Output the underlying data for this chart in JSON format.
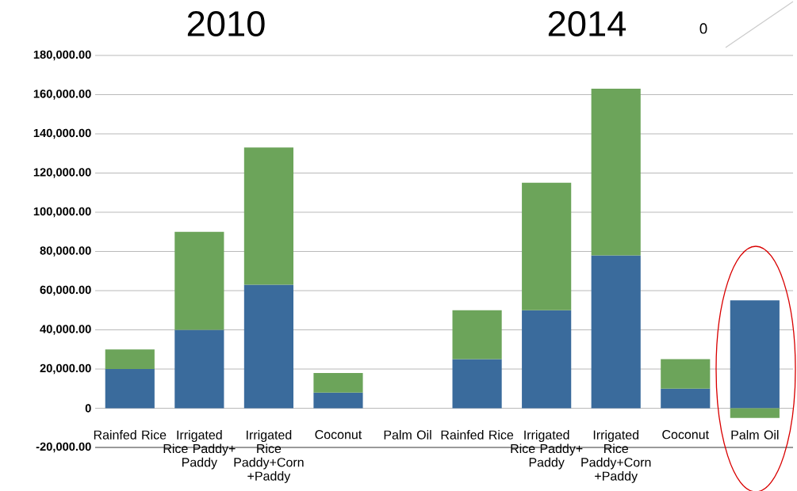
{
  "chart_data": {
    "type": "bar",
    "stacked": true,
    "categories": [
      "Rainfed Rice",
      "Irrigated Rice Paddy+ Paddy",
      "Irrigated Rice Paddy+Corn +Paddy",
      "Coconut",
      "Palm Oil",
      "Rainfed Rice",
      "Irrigated Rice Paddy+ Paddy",
      "Irrigated Rice Paddy+Corn +Paddy",
      "Coconut",
      "Palm Oil"
    ],
    "series": [
      {
        "color": "#3a6b9c",
        "values": [
          20000,
          40000,
          63000,
          8000,
          null,
          25000,
          50000,
          78000,
          10000,
          55000
        ]
      },
      {
        "color": "#6ca45a",
        "values": [
          10000,
          50000,
          70000,
          10000,
          null,
          25000,
          65000,
          85000,
          15000,
          -5000
        ]
      }
    ],
    "ylim": [
      -20000,
      180000
    ],
    "yticks": [
      {
        "value": -20000,
        "label": "-20,000.00"
      },
      0,
      {
        "value": 20000,
        "label": "20,000.00"
      },
      {
        "value": 40000,
        "label": "40,000.00"
      },
      {
        "value": 60000,
        "label": "60,000.00"
      },
      {
        "value": 80000,
        "label": "80,000.00"
      },
      {
        "value": 100000,
        "label": "100,000.00"
      },
      {
        "value": 120000,
        "label": "120,000.00"
      },
      {
        "value": 140000,
        "label": "140,000.00"
      },
      {
        "value": 160000,
        "label": "160,000.00"
      },
      {
        "value": 180000,
        "label": "180,000.00"
      }
    ],
    "grid": "y",
    "annotations": [
      "2010",
      "2014",
      "0"
    ]
  }
}
